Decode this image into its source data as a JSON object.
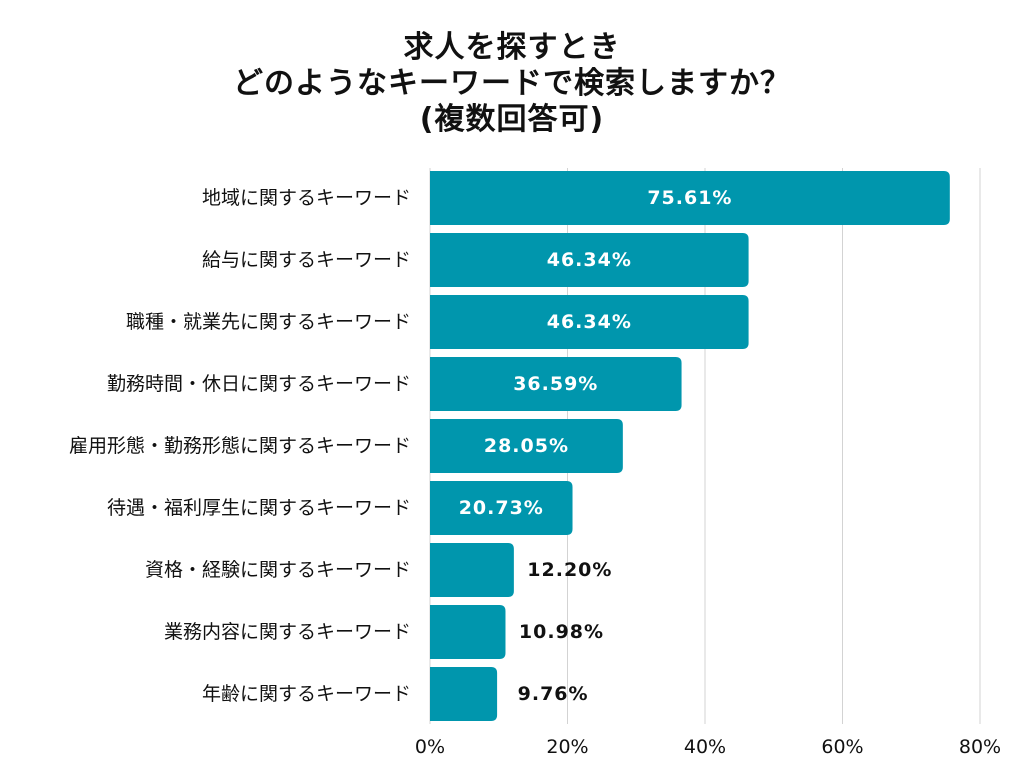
{
  "chart_data": {
    "type": "bar",
    "orientation": "horizontal",
    "title_lines": [
      "求人を探すとき",
      "どのようなキーワードで検索しますか？",
      "(複数回答可)"
    ],
    "categories": [
      "地域に関するキーワード",
      "給与に関するキーワード",
      "職種・就業先に関するキーワード",
      "勤務時間・休日に関するキーワード",
      "雇用形態・勤務形態に関するキーワード",
      "待遇・福利厚生に関するキーワード",
      "資格・経験に関するキーワード",
      "業務内容に関するキーワード",
      "年齢に関するキーワード"
    ],
    "values": [
      75.61,
      46.34,
      46.34,
      36.59,
      28.05,
      20.73,
      12.2,
      10.98,
      9.76
    ],
    "value_labels": [
      "75.61%",
      "46.34%",
      "46.34%",
      "36.59%",
      "28.05%",
      "20.73%",
      "12.20%",
      "10.98%",
      "9.76%"
    ],
    "xlim": [
      0,
      80
    ],
    "xticks": [
      0,
      20,
      40,
      60,
      80
    ],
    "xtick_labels": [
      "0%",
      "20%",
      "40%",
      "60%",
      "80%"
    ],
    "xlabel": "",
    "ylabel": "",
    "grid": true,
    "legend": "none",
    "colors": {
      "bar": "#0096ad",
      "grid": "#d3d3d3",
      "label_inside": "#ffffff",
      "label_outside": "#111111"
    }
  }
}
